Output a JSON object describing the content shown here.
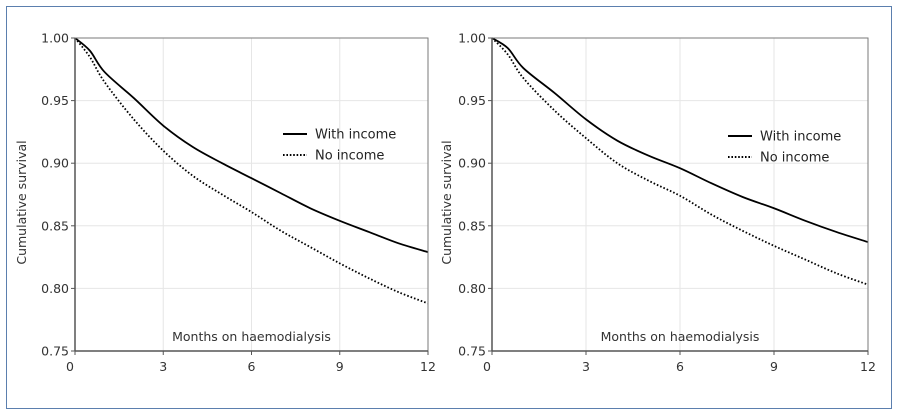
{
  "figure": {
    "border_color": "#5b7fae"
  },
  "chart_data": [
    {
      "type": "line",
      "title": "",
      "xlabel": "Months on haemodialysis",
      "ylabel": "Cumulative survival",
      "xlim": [
        0,
        12
      ],
      "ylim": [
        0.75,
        1.0
      ],
      "xticks": [
        0,
        3,
        6,
        9,
        12
      ],
      "yticks": [
        0.75,
        0.8,
        0.85,
        0.9,
        0.95,
        1.0
      ],
      "xtick_labels": [
        "0",
        "3",
        "6",
        "9",
        "12"
      ],
      "ytick_labels": [
        "0.75",
        "0.80",
        "0.85",
        "0.90",
        "0.95",
        "1.00"
      ],
      "grid": true,
      "legend_position": "center-right",
      "x": [
        0,
        0.5,
        1,
        2,
        3,
        4,
        5,
        6,
        7,
        8,
        9,
        10,
        11,
        12
      ],
      "series": [
        {
          "name": "With income",
          "style": "solid",
          "color": "#000000",
          "values": [
            1.0,
            0.99,
            0.973,
            0.952,
            0.93,
            0.913,
            0.9,
            0.888,
            0.876,
            0.864,
            0.854,
            0.845,
            0.836,
            0.829
          ]
        },
        {
          "name": "No income",
          "style": "dotted",
          "color": "#000000",
          "values": [
            1.0,
            0.985,
            0.965,
            0.935,
            0.91,
            0.89,
            0.875,
            0.861,
            0.846,
            0.833,
            0.82,
            0.808,
            0.797,
            0.788
          ]
        }
      ]
    },
    {
      "type": "line",
      "title": "",
      "xlabel": "Months on haemodialysis",
      "ylabel": "Cumulative survival",
      "xlim": [
        0,
        12
      ],
      "ylim": [
        0.75,
        1.0
      ],
      "xticks": [
        0,
        3,
        6,
        9,
        12
      ],
      "yticks": [
        0.75,
        0.8,
        0.85,
        0.9,
        0.95,
        1.0
      ],
      "xtick_labels": [
        "0",
        "3",
        "6",
        "9",
        "12"
      ],
      "ytick_labels": [
        "0.75",
        "0.80",
        "0.85",
        "0.90",
        "0.95",
        "1.00"
      ],
      "grid": true,
      "legend_position": "center-right",
      "x": [
        0,
        0.5,
        1,
        2,
        3,
        4,
        5,
        6,
        7,
        8,
        9,
        10,
        11,
        12
      ],
      "series": [
        {
          "name": "With income",
          "style": "solid",
          "color": "#000000",
          "values": [
            1.0,
            0.992,
            0.976,
            0.956,
            0.935,
            0.918,
            0.906,
            0.896,
            0.884,
            0.873,
            0.864,
            0.854,
            0.845,
            0.837
          ]
        },
        {
          "name": "No income",
          "style": "dotted",
          "color": "#000000",
          "values": [
            1.0,
            0.987,
            0.968,
            0.942,
            0.92,
            0.9,
            0.886,
            0.874,
            0.859,
            0.846,
            0.834,
            0.823,
            0.812,
            0.803
          ]
        }
      ]
    }
  ]
}
